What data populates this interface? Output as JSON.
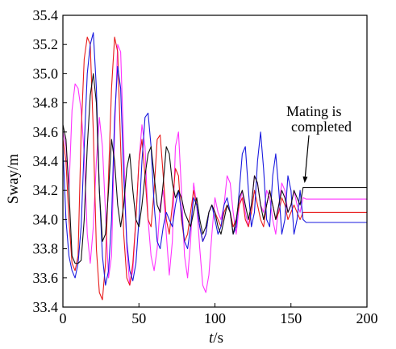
{
  "chart_data": {
    "type": "line",
    "title": "",
    "xlabel_italic": "t",
    "xlabel_unit": "/s",
    "ylabel": "Sway/m",
    "xlim": [
      0,
      200
    ],
    "ylim": [
      33.4,
      35.4
    ],
    "xticks": [
      "0",
      "50",
      "100",
      "150",
      "200"
    ],
    "yticks": [
      "33.4",
      "33.6",
      "33.8",
      "34.0",
      "34.2",
      "34.4",
      "34.6",
      "34.8",
      "35.0",
      "35.2",
      "35.4"
    ],
    "grid": false,
    "legend": "none",
    "annotation": {
      "lines": [
        "Mating is",
        "completed"
      ],
      "arrow_to": [
        159,
        34.25
      ]
    },
    "series": [
      {
        "color": "#ff33ff",
        "x": [
          0,
          2,
          4,
          6,
          8,
          10,
          12,
          14,
          16,
          18,
          20,
          22,
          24,
          26,
          28,
          30,
          32,
          34,
          36,
          38,
          40,
          42,
          44,
          46,
          48,
          50,
          52,
          54,
          56,
          58,
          60,
          62,
          64,
          66,
          68,
          70,
          72,
          74,
          76,
          78,
          80,
          82,
          84,
          86,
          88,
          90,
          92,
          94,
          96,
          98,
          100,
          102,
          104,
          106,
          108,
          110,
          112,
          114,
          116,
          118,
          120,
          122,
          124,
          126,
          128,
          130,
          132,
          134,
          136,
          138,
          140,
          142,
          144,
          146,
          148,
          150,
          152,
          154,
          156,
          158,
          160,
          200
        ],
        "y": [
          34.6,
          34.5,
          34.2,
          34.75,
          34.93,
          34.9,
          34.75,
          34.45,
          33.9,
          33.7,
          33.95,
          34.4,
          34.7,
          34.5,
          34.05,
          33.6,
          33.75,
          34.6,
          35.2,
          35.15,
          34.5,
          33.8,
          33.55,
          33.65,
          34.0,
          34.4,
          34.65,
          34.5,
          34.0,
          33.75,
          33.65,
          33.8,
          34.1,
          34.2,
          33.9,
          33.62,
          33.85,
          34.5,
          34.6,
          34.2,
          33.75,
          33.6,
          33.85,
          34.25,
          34.1,
          33.8,
          33.55,
          33.5,
          33.62,
          33.9,
          34.15,
          34.05,
          34.0,
          34.1,
          34.3,
          34.25,
          34.05,
          33.9,
          34.1,
          34.2,
          34.05,
          33.95,
          34.1,
          34.3,
          34.25,
          34.1,
          34.05,
          34.2,
          34.15,
          34.0,
          33.9,
          34.1,
          34.25,
          34.2,
          34.05,
          34.1,
          34.2,
          34.1,
          34.05,
          34.15,
          34.14,
          34.14
        ]
      },
      {
        "color": "#e81a1a",
        "x": [
          0,
          2,
          4,
          6,
          8,
          10,
          12,
          14,
          16,
          18,
          20,
          22,
          24,
          26,
          28,
          30,
          32,
          34,
          36,
          38,
          40,
          42,
          44,
          46,
          48,
          50,
          52,
          54,
          56,
          58,
          60,
          62,
          64,
          66,
          68,
          70,
          72,
          74,
          76,
          78,
          80,
          82,
          84,
          86,
          88,
          90,
          92,
          94,
          96,
          98,
          100,
          102,
          104,
          106,
          108,
          110,
          112,
          114,
          116,
          118,
          120,
          122,
          124,
          126,
          128,
          130,
          132,
          134,
          136,
          138,
          140,
          142,
          144,
          146,
          148,
          150,
          152,
          154,
          156,
          158,
          160,
          200
        ],
        "y": [
          34.55,
          34.4,
          34.0,
          33.7,
          33.65,
          33.75,
          34.6,
          35.1,
          35.25,
          35.2,
          34.6,
          33.8,
          33.5,
          33.45,
          33.7,
          34.3,
          34.9,
          35.25,
          35.15,
          34.5,
          33.9,
          33.6,
          33.55,
          33.7,
          34.0,
          34.4,
          34.55,
          34.3,
          34.0,
          33.95,
          34.2,
          34.55,
          34.58,
          34.3,
          34.0,
          33.9,
          34.1,
          34.35,
          34.3,
          34.0,
          33.85,
          33.9,
          34.05,
          34.2,
          34.1,
          33.95,
          33.85,
          33.9,
          34.05,
          34.1,
          34.05,
          34.0,
          33.95,
          34.05,
          34.1,
          34.05,
          33.95,
          34.0,
          34.1,
          34.15,
          34.0,
          33.95,
          34.05,
          34.2,
          34.1,
          34.0,
          33.95,
          34.1,
          34.2,
          34.1,
          34.0,
          34.05,
          34.15,
          34.1,
          34.0,
          34.05,
          34.1,
          34.05,
          34.0,
          34.05,
          34.05,
          34.05
        ]
      },
      {
        "color": "#1a1adf",
        "x": [
          0,
          2,
          4,
          6,
          8,
          10,
          12,
          14,
          16,
          18,
          20,
          22,
          24,
          26,
          28,
          30,
          32,
          34,
          36,
          38,
          40,
          42,
          44,
          46,
          48,
          50,
          52,
          54,
          56,
          58,
          60,
          62,
          64,
          66,
          68,
          70,
          72,
          74,
          76,
          78,
          80,
          82,
          84,
          86,
          88,
          90,
          92,
          94,
          96,
          98,
          100,
          102,
          104,
          106,
          108,
          110,
          112,
          114,
          116,
          118,
          120,
          122,
          124,
          126,
          128,
          130,
          132,
          134,
          136,
          138,
          140,
          142,
          144,
          146,
          148,
          150,
          152,
          154,
          156,
          158,
          160,
          200
        ],
        "y": [
          34.5,
          34.0,
          33.75,
          33.65,
          33.6,
          33.7,
          33.95,
          34.5,
          35.0,
          35.2,
          35.28,
          34.9,
          34.2,
          33.75,
          33.55,
          33.65,
          34.0,
          34.7,
          35.05,
          34.9,
          34.3,
          33.85,
          33.65,
          33.58,
          33.7,
          34.0,
          34.4,
          34.7,
          34.73,
          34.5,
          34.1,
          33.85,
          33.8,
          33.95,
          34.05,
          34.0,
          33.95,
          34.1,
          34.2,
          34.05,
          33.85,
          33.8,
          33.95,
          34.15,
          34.1,
          33.95,
          33.85,
          33.9,
          34.05,
          34.1,
          34.0,
          33.9,
          33.95,
          34.1,
          34.15,
          34.05,
          33.9,
          33.95,
          34.2,
          34.45,
          34.5,
          34.2,
          33.95,
          34.05,
          34.4,
          34.6,
          34.35,
          34.0,
          33.95,
          34.3,
          34.45,
          34.2,
          33.9,
          34.0,
          34.3,
          34.2,
          33.9,
          34.0,
          34.2,
          34.0,
          33.98,
          33.98
        ]
      },
      {
        "color": "#111111",
        "x": [
          0,
          2,
          4,
          6,
          8,
          10,
          12,
          14,
          16,
          18,
          20,
          22,
          24,
          26,
          28,
          30,
          32,
          34,
          36,
          38,
          40,
          42,
          44,
          46,
          48,
          50,
          52,
          54,
          56,
          58,
          60,
          62,
          64,
          66,
          68,
          70,
          72,
          74,
          76,
          78,
          80,
          82,
          84,
          86,
          88,
          90,
          92,
          94,
          96,
          98,
          100,
          102,
          104,
          106,
          108,
          110,
          112,
          114,
          116,
          118,
          120,
          122,
          124,
          126,
          128,
          130,
          132,
          134,
          136,
          138,
          140,
          142,
          144,
          146,
          148,
          150,
          152,
          154,
          156,
          158,
          160,
          200
        ],
        "y": [
          34.65,
          34.55,
          34.2,
          33.75,
          33.7,
          33.7,
          33.72,
          34.0,
          34.5,
          34.85,
          35.0,
          34.8,
          34.2,
          33.85,
          33.9,
          34.2,
          34.55,
          34.4,
          34.1,
          33.95,
          34.1,
          34.35,
          34.45,
          34.2,
          34.0,
          33.95,
          34.1,
          34.3,
          34.45,
          34.5,
          34.3,
          34.1,
          34.05,
          34.25,
          34.5,
          34.45,
          34.25,
          34.15,
          34.2,
          34.15,
          34.05,
          34.0,
          33.95,
          34.05,
          34.15,
          34.0,
          33.9,
          33.95,
          34.05,
          34.1,
          34.05,
          33.95,
          33.9,
          34.0,
          34.1,
          34.05,
          33.9,
          34.0,
          34.15,
          34.2,
          34.1,
          34.0,
          34.1,
          34.3,
          34.25,
          34.1,
          34.0,
          34.1,
          34.2,
          34.1,
          34.0,
          34.1,
          34.2,
          34.15,
          34.05,
          34.1,
          34.2,
          34.15,
          34.1,
          34.22,
          34.22,
          34.22
        ]
      }
    ]
  }
}
